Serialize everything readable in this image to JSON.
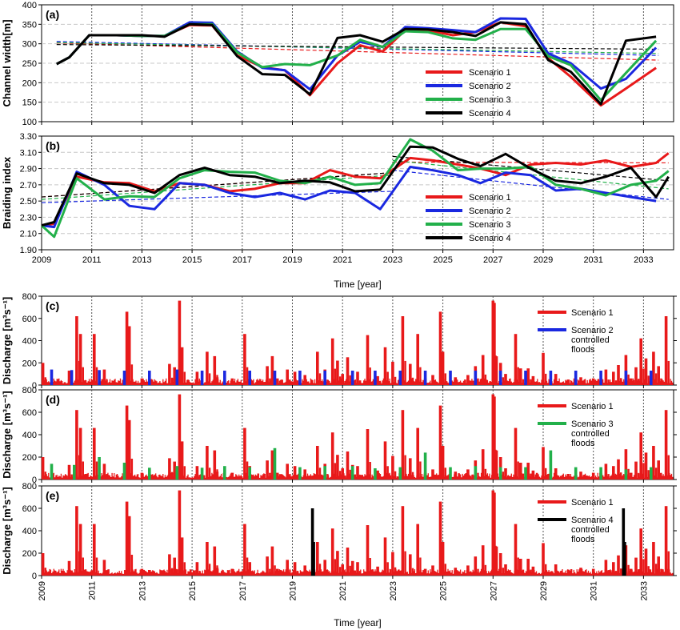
{
  "colors": {
    "scenario1": "#e8191a",
    "scenario2": "#1a28e0",
    "scenario3": "#22b04a",
    "scenario4": "#000000",
    "grid": "#c8c8c8",
    "panel_bg": "#ffffff"
  },
  "chart_data": [
    {
      "panel": "(a)",
      "type": "line",
      "ylabel": "Channel width[m]",
      "xlabel": "",
      "ylim": [
        100,
        400
      ],
      "yticks": [
        100,
        150,
        200,
        250,
        300,
        350,
        400
      ],
      "xlim": [
        2009,
        2034.2
      ],
      "xticks": [
        2009,
        2011,
        2013,
        2015,
        2017,
        2019,
        2021,
        2023,
        2025,
        2027,
        2029,
        2031,
        2033
      ],
      "grid": true,
      "legend_placement": "bottom-right",
      "series": [
        {
          "name": "Scenario 1",
          "color": "scenario1",
          "x": [
            2009.6,
            2010.1,
            2010.9,
            2012.0,
            2013.0,
            2013.9,
            2014.9,
            2015.8,
            2016.8,
            2017.8,
            2018.7,
            2019.7,
            2020.8,
            2021.7,
            2022.6,
            2023.5,
            2024.4,
            2025.4,
            2026.3,
            2027.3,
            2028.3,
            2029.2,
            2030.1,
            2031.3,
            2032.3,
            2033.5
          ],
          "y": [
            248,
            265,
            322,
            322,
            320,
            320,
            348,
            347,
            270,
            240,
            232,
            168,
            250,
            296,
            280,
            335,
            335,
            322,
            330,
            355,
            345,
            263,
            215,
            142,
            185,
            238
          ],
          "trend": [
            302,
            258
          ]
        },
        {
          "name": "Scenario 2",
          "color": "scenario2",
          "x": [
            2009.6,
            2010.1,
            2010.9,
            2012.0,
            2013.0,
            2013.9,
            2014.9,
            2015.8,
            2016.8,
            2017.8,
            2018.7,
            2019.7,
            2020.8,
            2021.7,
            2022.6,
            2023.5,
            2024.4,
            2025.4,
            2026.3,
            2027.3,
            2028.3,
            2029.2,
            2030.1,
            2031.3,
            2032.3,
            2033.5
          ],
          "y": [
            248,
            265,
            322,
            322,
            320,
            320,
            355,
            354,
            280,
            238,
            232,
            183,
            270,
            305,
            292,
            343,
            340,
            335,
            330,
            365,
            364,
            275,
            250,
            185,
            210,
            290
          ],
          "trend": [
            306,
            270
          ]
        },
        {
          "name": "Scenario 3",
          "color": "scenario3",
          "x": [
            2009.6,
            2010.1,
            2010.9,
            2012.0,
            2013.0,
            2013.9,
            2014.9,
            2015.8,
            2016.8,
            2017.8,
            2018.7,
            2019.7,
            2020.8,
            2021.7,
            2022.6,
            2023.5,
            2024.4,
            2025.4,
            2026.3,
            2027.3,
            2028.3,
            2029.2,
            2030.1,
            2031.3,
            2032.3,
            2033.5
          ],
          "y": [
            248,
            265,
            322,
            322,
            320,
            320,
            350,
            350,
            278,
            240,
            248,
            245,
            270,
            310,
            292,
            332,
            330,
            314,
            310,
            338,
            338,
            268,
            245,
            155,
            225,
            308
          ],
          "trend": [
            303,
            275
          ]
        },
        {
          "name": "Scenario 4",
          "color": "scenario4",
          "x": [
            2009.6,
            2010.1,
            2010.9,
            2012.0,
            2013.0,
            2013.9,
            2014.9,
            2015.8,
            2016.8,
            2017.8,
            2018.7,
            2019.7,
            2020.8,
            2021.7,
            2022.6,
            2023.5,
            2024.4,
            2025.4,
            2026.3,
            2027.3,
            2028.3,
            2029.2,
            2030.1,
            2031.3,
            2032.3,
            2033.5
          ],
          "y": [
            248,
            265,
            322,
            322,
            322,
            318,
            350,
            348,
            268,
            222,
            220,
            170,
            315,
            322,
            305,
            338,
            337,
            330,
            320,
            355,
            350,
            258,
            228,
            145,
            308,
            318
          ],
          "trend": [
            298,
            286
          ]
        }
      ],
      "legend": [
        "Scenario 1",
        "Scenario 2",
        "Scenario 3",
        "Scenario 4"
      ]
    },
    {
      "panel": "(b)",
      "type": "line",
      "ylabel": "Braiding index",
      "xlabel": "Time [year]",
      "ylim": [
        1.9,
        3.3
      ],
      "yticks": [
        1.9,
        2.1,
        2.3,
        2.5,
        2.7,
        2.9,
        3.1,
        3.3
      ],
      "ytick_labels": [
        "1.90",
        "2.10",
        "2.30",
        "2.50",
        "2.70",
        "2.90",
        "3.10",
        "3.30"
      ],
      "xlim": [
        2009,
        2034.2
      ],
      "xticks": [
        2009,
        2011,
        2013,
        2015,
        2017,
        2019,
        2021,
        2023,
        2025,
        2027,
        2029,
        2031,
        2033
      ],
      "grid": true,
      "legend_placement": "bottom-right",
      "series": [
        {
          "name": "Scenario 1",
          "color": "scenario1",
          "x": [
            2009.0,
            2009.5,
            2010.4,
            2011.5,
            2012.5,
            2013.5,
            2014.5,
            2015.5,
            2016.5,
            2017.5,
            2018.5,
            2019.5,
            2020.5,
            2021.5,
            2022.5,
            2023.7,
            2024.6,
            2025.6,
            2026.5,
            2027.5,
            2028.5,
            2029.5,
            2030.5,
            2031.5,
            2032.5,
            2033.5,
            2034.0
          ],
          "y": [
            2.2,
            2.22,
            2.8,
            2.73,
            2.72,
            2.62,
            2.72,
            2.7,
            2.62,
            2.65,
            2.72,
            2.72,
            2.88,
            2.8,
            2.78,
            3.03,
            3.0,
            2.95,
            2.9,
            2.82,
            2.95,
            2.97,
            2.95,
            3.0,
            2.92,
            2.97,
            3.09
          ],
          "trend_segments": [
            [
              2009.0,
              2.55,
              2023.0,
              2.85
            ],
            [
              2023.0,
              2.98,
              2034.0,
              2.97
            ]
          ]
        },
        {
          "name": "Scenario 2",
          "color": "scenario2",
          "x": [
            2009.0,
            2009.5,
            2010.4,
            2011.5,
            2012.5,
            2013.5,
            2014.5,
            2015.5,
            2016.5,
            2017.5,
            2018.5,
            2019.5,
            2020.5,
            2021.5,
            2022.5,
            2023.7,
            2024.6,
            2025.6,
            2026.5,
            2027.5,
            2028.5,
            2029.5,
            2030.5,
            2031.5,
            2032.5,
            2033.5
          ],
          "y": [
            2.2,
            2.18,
            2.86,
            2.7,
            2.44,
            2.4,
            2.72,
            2.7,
            2.6,
            2.55,
            2.6,
            2.52,
            2.63,
            2.6,
            2.4,
            2.92,
            2.88,
            2.82,
            2.72,
            2.85,
            2.82,
            2.63,
            2.65,
            2.6,
            2.55,
            2.5
          ],
          "trend_segments": [
            [
              2009.0,
              2.48,
              2023.0,
              2.62
            ],
            [
              2023.0,
              2.88,
              2034.0,
              2.52
            ]
          ]
        },
        {
          "name": "Scenario 3",
          "color": "scenario3",
          "x": [
            2009.0,
            2009.5,
            2010.4,
            2011.5,
            2012.5,
            2013.5,
            2014.5,
            2015.5,
            2016.5,
            2017.5,
            2018.5,
            2019.5,
            2020.5,
            2021.5,
            2022.5,
            2023.7,
            2024.6,
            2025.6,
            2026.5,
            2027.5,
            2028.5,
            2029.5,
            2030.5,
            2031.5,
            2032.5,
            2033.5,
            2034.0
          ],
          "y": [
            2.2,
            2.06,
            2.78,
            2.52,
            2.56,
            2.55,
            2.78,
            2.88,
            2.86,
            2.85,
            2.75,
            2.72,
            2.8,
            2.7,
            2.72,
            3.26,
            3.12,
            2.88,
            2.9,
            2.9,
            2.92,
            2.7,
            2.65,
            2.57,
            2.7,
            2.75,
            2.87
          ],
          "trend_segments": [
            [
              2009.0,
              2.52,
              2023.0,
              2.82
            ],
            [
              2023.0,
              3.0,
              2034.0,
              2.65
            ]
          ]
        },
        {
          "name": "Scenario 4",
          "color": "scenario4",
          "x": [
            2009.0,
            2009.5,
            2010.4,
            2011.5,
            2012.5,
            2013.5,
            2014.5,
            2015.5,
            2016.5,
            2017.5,
            2018.5,
            2019.5,
            2020.5,
            2021.5,
            2022.5,
            2023.7,
            2024.6,
            2025.6,
            2026.5,
            2027.5,
            2028.5,
            2029.5,
            2030.5,
            2031.5,
            2032.5,
            2033.5,
            2034.0
          ],
          "y": [
            2.2,
            2.24,
            2.84,
            2.72,
            2.7,
            2.6,
            2.82,
            2.91,
            2.82,
            2.8,
            2.72,
            2.75,
            2.73,
            2.62,
            2.64,
            3.17,
            3.16,
            3.02,
            2.93,
            3.08,
            2.9,
            2.75,
            2.72,
            2.8,
            2.91,
            2.55,
            2.8
          ],
          "trend_segments": [
            [
              2009.0,
              2.55,
              2023.0,
              2.85
            ],
            [
              2023.0,
              3.05,
              2034.0,
              2.75
            ]
          ]
        }
      ],
      "legend": [
        "Scenario 1",
        "Scenario 2",
        "Scenario 3",
        "Scenario 4"
      ]
    },
    {
      "panel": "(c)",
      "type": "bar",
      "ylabel": "Discharge [m³s⁻¹]",
      "ylim": [
        0,
        800
      ],
      "yticks": [
        0,
        200,
        400,
        600,
        800
      ],
      "xlim": [
        2009,
        2034.2
      ],
      "legend": [
        "Scenario 1",
        "Scenario 2 controlled floods"
      ],
      "legend_placement": "top-right",
      "overlay_scenario": "scenario2",
      "overlay_peaks": [
        [
          2009.4,
          140
        ],
        [
          2010.2,
          135
        ],
        [
          2011.3,
          135
        ],
        [
          2012.3,
          130
        ],
        [
          2013.3,
          130
        ],
        [
          2014.4,
          140
        ],
        [
          2015.4,
          130
        ],
        [
          2016.3,
          130
        ],
        [
          2017.3,
          130
        ],
        [
          2018.3,
          130
        ],
        [
          2019.3,
          130
        ],
        [
          2020.3,
          130
        ],
        [
          2021.4,
          130
        ],
        [
          2022.3,
          130
        ],
        [
          2023.3,
          130
        ],
        [
          2024.3,
          130
        ],
        [
          2025.3,
          130
        ],
        [
          2026.3,
          130
        ],
        [
          2027.3,
          130
        ],
        [
          2028.3,
          130
        ],
        [
          2029.3,
          130
        ],
        [
          2030.3,
          130
        ],
        [
          2031.3,
          130
        ],
        [
          2032.3,
          130
        ],
        [
          2033.3,
          130
        ]
      ]
    },
    {
      "panel": "(d)",
      "type": "bar",
      "ylabel": "Discharge [m³s⁻¹]",
      "ylim": [
        0,
        800
      ],
      "yticks": [
        0,
        200,
        400,
        600,
        800
      ],
      "xlim": [
        2009,
        2034.2
      ],
      "legend": [
        "Scenario 1",
        "Scenario 3 controlled floods"
      ],
      "legend_placement": "top-right",
      "overlay_scenario": "scenario3",
      "overlay_peaks": [
        [
          2009.4,
          140
        ],
        [
          2010.3,
          130
        ],
        [
          2011.3,
          200
        ],
        [
          2012.3,
          150
        ],
        [
          2013.3,
          105
        ],
        [
          2014.4,
          120
        ],
        [
          2015.4,
          105
        ],
        [
          2016.3,
          120
        ],
        [
          2017.3,
          110
        ],
        [
          2018.3,
          280
        ],
        [
          2019.3,
          110
        ],
        [
          2020.3,
          120
        ],
        [
          2021.4,
          120
        ],
        [
          2022.3,
          100
        ],
        [
          2023.3,
          110
        ],
        [
          2024.3,
          240
        ],
        [
          2025.3,
          110
        ],
        [
          2026.3,
          120
        ],
        [
          2027.3,
          110
        ],
        [
          2028.3,
          110
        ],
        [
          2029.3,
          260
        ],
        [
          2030.3,
          110
        ],
        [
          2031.3,
          110
        ],
        [
          2032.3,
          90
        ],
        [
          2033.3,
          110
        ]
      ]
    },
    {
      "panel": "(e)",
      "type": "bar",
      "ylabel": "Discharge [m³s⁻¹]",
      "xlabel": "Time [year]",
      "ylim": [
        0,
        800
      ],
      "yticks": [
        0,
        200,
        400,
        600,
        800
      ],
      "xlim": [
        2009,
        2034.2
      ],
      "xticks": [
        2009,
        2011,
        2013,
        2015,
        2017,
        2019,
        2021,
        2023,
        2025,
        2027,
        2029,
        2031,
        2033
      ],
      "legend": [
        "Scenario 1",
        "Scenario 4 controlled floods"
      ],
      "legend_placement": "top-right",
      "overlay_scenario": "scenario4",
      "overlay_peaks": [
        [
          2019.8,
          600
        ],
        [
          2019.85,
          300
        ],
        [
          2032.2,
          600
        ],
        [
          2032.25,
          300
        ]
      ]
    }
  ],
  "scenario1_discharge_peaks": [
    [
      2009.05,
      200
    ],
    [
      2010.1,
      130
    ],
    [
      2010.4,
      620
    ],
    [
      2010.55,
      460
    ],
    [
      2011.1,
      460
    ],
    [
      2011.5,
      140
    ],
    [
      2012.4,
      660
    ],
    [
      2012.5,
      530
    ],
    [
      2013.0,
      60
    ],
    [
      2013.3,
      50
    ],
    [
      2014.1,
      190
    ],
    [
      2014.3,
      160
    ],
    [
      2014.5,
      760
    ],
    [
      2014.6,
      340
    ],
    [
      2015.2,
      120
    ],
    [
      2015.6,
      300
    ],
    [
      2015.9,
      260
    ],
    [
      2016.0,
      70
    ],
    [
      2016.6,
      60
    ],
    [
      2017.1,
      460
    ],
    [
      2017.3,
      120
    ],
    [
      2018.0,
      170
    ],
    [
      2018.2,
      260
    ],
    [
      2018.4,
      60
    ],
    [
      2018.8,
      140
    ],
    [
      2019.1,
      120
    ],
    [
      2019.5,
      90
    ],
    [
      2020.0,
      300
    ],
    [
      2020.3,
      140
    ],
    [
      2020.6,
      420
    ],
    [
      2020.8,
      220
    ],
    [
      2021.0,
      100
    ],
    [
      2021.2,
      250
    ],
    [
      2021.4,
      130
    ],
    [
      2021.6,
      120
    ],
    [
      2022.0,
      450
    ],
    [
      2022.4,
      80
    ],
    [
      2022.7,
      340
    ],
    [
      2023.0,
      210
    ],
    [
      2023.4,
      620
    ],
    [
      2023.7,
      190
    ],
    [
      2024.0,
      460
    ],
    [
      2024.3,
      60
    ],
    [
      2024.6,
      90
    ],
    [
      2024.9,
      660
    ],
    [
      2025.0,
      300
    ],
    [
      2025.5,
      70
    ],
    [
      2026.0,
      90
    ],
    [
      2026.3,
      170
    ],
    [
      2026.6,
      270
    ],
    [
      2027.0,
      760
    ],
    [
      2027.05,
      740
    ],
    [
      2027.3,
      200
    ],
    [
      2027.5,
      100
    ],
    [
      2027.9,
      460
    ],
    [
      2028.1,
      150
    ],
    [
      2028.4,
      150
    ],
    [
      2028.6,
      80
    ],
    [
      2029.0,
      290
    ],
    [
      2029.5,
      100
    ],
    [
      2030.0,
      50
    ],
    [
      2030.5,
      70
    ],
    [
      2031.0,
      60
    ],
    [
      2031.5,
      140
    ],
    [
      2031.8,
      120
    ],
    [
      2032.0,
      180
    ],
    [
      2032.3,
      270
    ],
    [
      2032.5,
      60
    ],
    [
      2032.7,
      160
    ],
    [
      2032.9,
      420
    ],
    [
      2033.1,
      240
    ],
    [
      2033.4,
      300
    ],
    [
      2033.6,
      170
    ],
    [
      2033.9,
      620
    ]
  ],
  "figure": {
    "time_label": "Time [year]"
  }
}
